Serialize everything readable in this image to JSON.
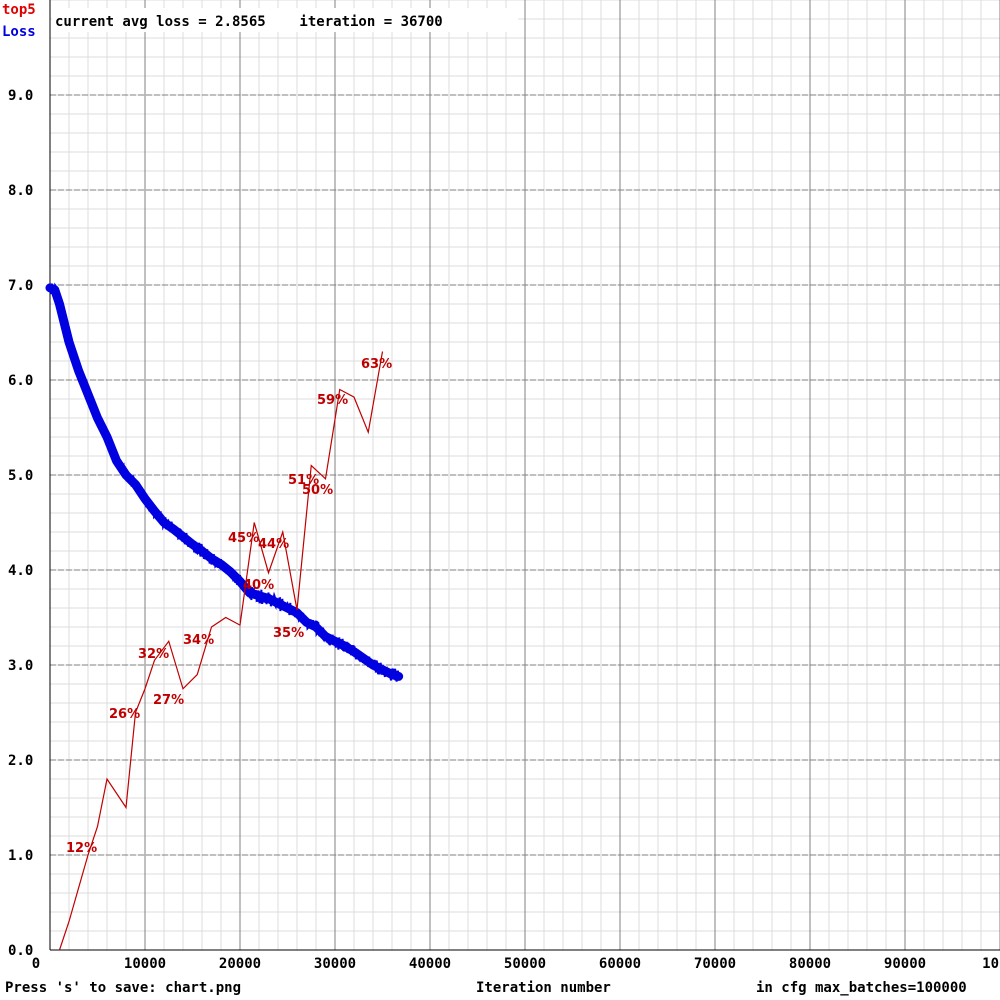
{
  "header": {
    "status_text": "current avg loss = 2.8565    iteration = 36700"
  },
  "legend": {
    "top5_label": "top5",
    "loss_label": "Loss",
    "top5_color": "#e00000",
    "loss_color": "#0000e0"
  },
  "footer": {
    "save_hint": "Press 's' to save: chart.png",
    "xlabel": "Iteration number",
    "max_batches": "in cfg max_batches=100000"
  },
  "chart_data": {
    "type": "line",
    "title": "",
    "xlabel": "Iteration number",
    "ylabel": "",
    "xlim": [
      0,
      100000
    ],
    "ylim": [
      0,
      10
    ],
    "grid": true,
    "legend_placement": "top-left",
    "x_ticks": [
      "0",
      "10000",
      "20000",
      "30000",
      "40000",
      "50000",
      "60000",
      "70000",
      "80000",
      "90000",
      "10"
    ],
    "y_ticks": [
      "0.0",
      "1.0",
      "2.0",
      "3.0",
      "4.0",
      "5.0",
      "6.0",
      "7.0",
      "8.0",
      "9.0"
    ],
    "series": [
      {
        "name": "Loss",
        "color": "#0000e0",
        "x": [
          0,
          500,
          1000,
          2000,
          3000,
          4000,
          5000,
          6000,
          7000,
          8000,
          9000,
          10000,
          11000,
          12000,
          13000,
          14000,
          15000,
          16000,
          17000,
          18000,
          19000,
          20000,
          21000,
          22000,
          23000,
          24000,
          25000,
          26000,
          27000,
          28000,
          29000,
          30000,
          31000,
          32000,
          33000,
          34000,
          35000,
          36000,
          36700
        ],
        "y": [
          6.97,
          6.95,
          6.8,
          6.4,
          6.1,
          5.85,
          5.6,
          5.4,
          5.15,
          5.0,
          4.9,
          4.75,
          4.62,
          4.5,
          4.43,
          4.35,
          4.27,
          4.2,
          4.12,
          4.06,
          3.98,
          3.88,
          3.76,
          3.73,
          3.7,
          3.65,
          3.6,
          3.55,
          3.45,
          3.4,
          3.3,
          3.25,
          3.2,
          3.14,
          3.07,
          3.0,
          2.95,
          2.9,
          2.88
        ],
        "band": 0.07
      },
      {
        "name": "top5",
        "color": "#c00000",
        "x": [
          1000,
          2000,
          4000,
          5000,
          6000,
          7000,
          8000,
          9000,
          10000,
          11000,
          12500,
          14000,
          15500,
          17000,
          18500,
          20000,
          21500,
          23000,
          24500,
          26000,
          27500,
          29000,
          30500,
          32000,
          33500,
          35000
        ],
        "y": [
          0.0,
          0.3,
          1.0,
          1.3,
          1.8,
          1.65,
          1.5,
          2.5,
          2.75,
          3.05,
          3.25,
          2.75,
          2.9,
          3.4,
          3.5,
          3.42,
          4.5,
          3.97,
          4.4,
          3.58,
          5.1,
          4.96,
          5.9,
          5.82,
          5.45,
          6.3
        ]
      }
    ],
    "annotations": [
      {
        "text": "12%",
        "x": 3000,
        "y": 0.85
      },
      {
        "text": "26%",
        "x": 8100,
        "y": 2.5
      },
      {
        "text": "32%",
        "x": 11000,
        "y": 1.0
      },
      {
        "text": "27%",
        "x": 12500,
        "y": 0.6
      },
      {
        "text": "34%",
        "x": 16000,
        "y": 2.8
      },
      {
        "text": "45%",
        "x": 21000,
        "y": 3.3
      },
      {
        "text": "40%",
        "x": 22000,
        "y": 3.1
      },
      {
        "text": "44%",
        "x": 24000,
        "y": 4.3
      },
      {
        "text": "35%",
        "x": 26000,
        "y": 4.9
      },
      {
        "text": "51%",
        "x": 28000,
        "y": 5.0
      },
      {
        "text": "50%",
        "x": 29000,
        "y": 4.8
      },
      {
        "text": "59%",
        "x": 31000,
        "y": 2.0
      },
      {
        "text": "63%",
        "x": 35000,
        "y": 1.5
      }
    ]
  }
}
